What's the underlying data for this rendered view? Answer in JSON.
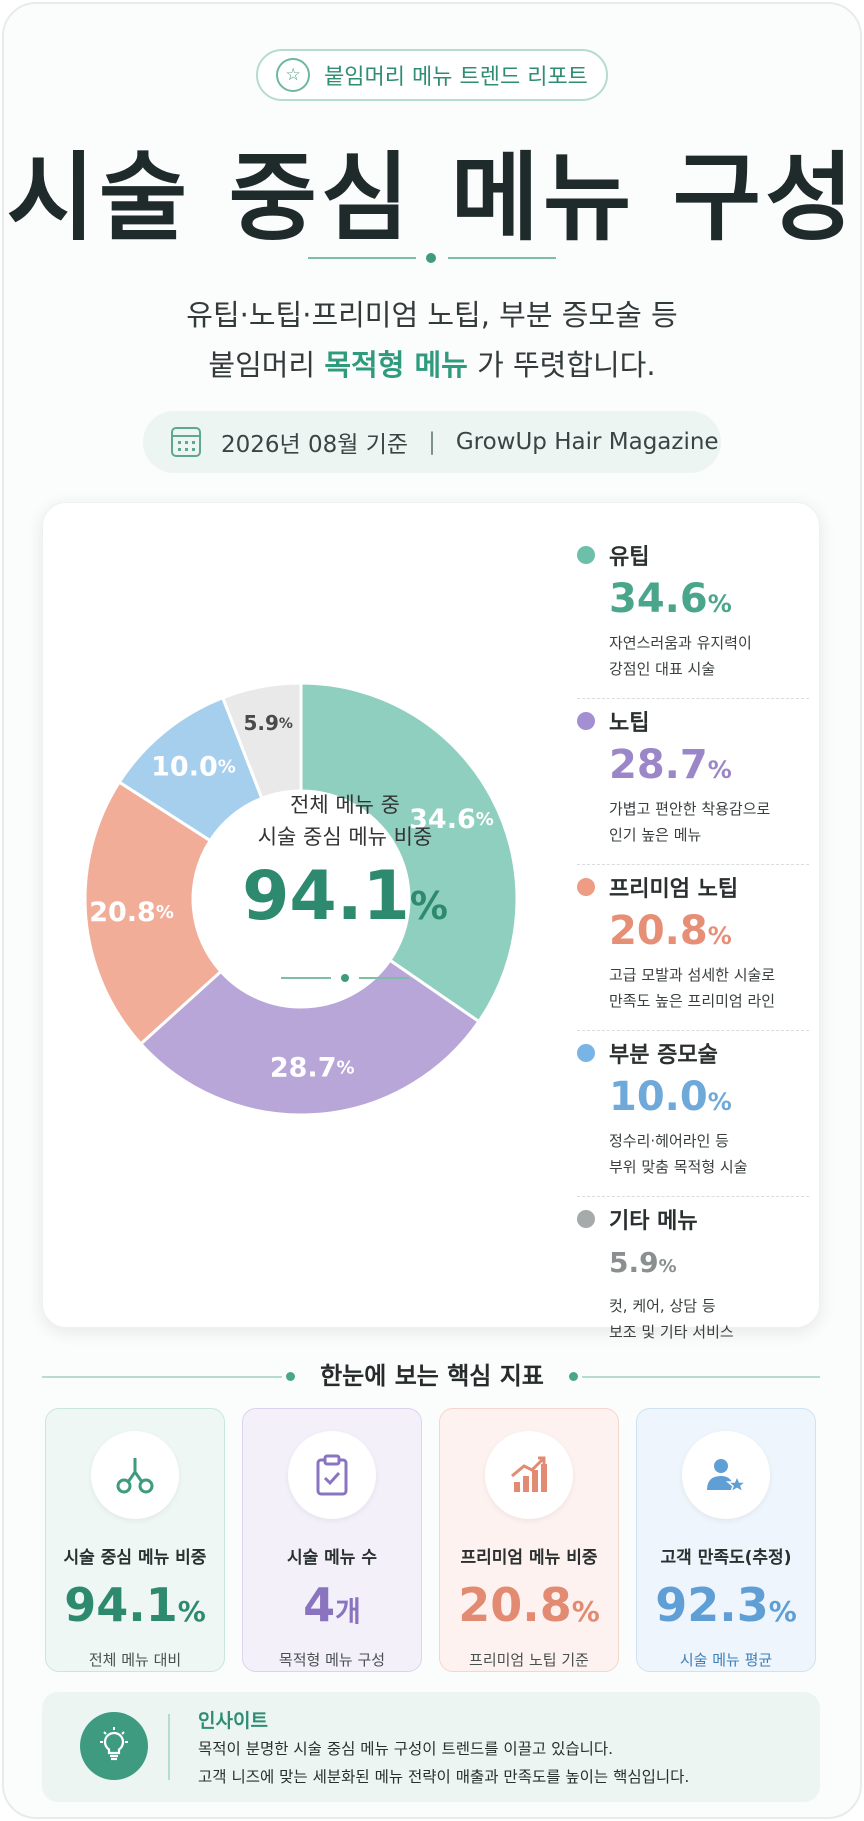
{
  "header": {
    "badge": "붙임머리 메뉴 트렌드 리포트",
    "title": "시술 중심 메뉴 구성",
    "subtitle_line1": "유팁·노팁·프리미엄 노팁, 부분 증모술 등",
    "subtitle_line2_pre": "붙임머리 ",
    "subtitle_line2_highlight": "목적형 메뉴",
    "subtitle_line2_post": "가 뚜렷합니다.",
    "date": "2026년 08월 기준",
    "source": "GrowUp Hair Magazine"
  },
  "center": {
    "label_line1": "전체 메뉴 중",
    "label_line2": "시술 중심 메뉴 비중",
    "value": "94.1",
    "unit": "%"
  },
  "chart_data": {
    "type": "pie",
    "categories": [
      "유팁",
      "노팁",
      "프리미엄 노팁",
      "부분 증모술",
      "기타 메뉴"
    ],
    "values": [
      34.6,
      28.7,
      20.8,
      10.0,
      5.9
    ],
    "slice_labels": [
      "34.6",
      "28.7",
      "20.8",
      "10.0",
      "5.9"
    ],
    "colors": [
      "#8fcfbf",
      "#b8a6d9",
      "#f1ad98",
      "#a6cfee",
      "#e9e9e9"
    ],
    "label_colors": [
      "#ffffff",
      "#ffffff",
      "#ffffff",
      "#ffffff",
      "#4a4a4a"
    ],
    "value_colors": [
      "#4aa68b",
      "#9b86c7",
      "#e68f76",
      "#6fa9da",
      "#8a8f8f"
    ],
    "dot_colors": [
      "#6cbfa9",
      "#a58fd3",
      "#ef9c84",
      "#78b4e6",
      "#a7aaaa"
    ],
    "descriptions": [
      [
        "자연스러움과 유지력이",
        "강점인 대표 시술"
      ],
      [
        "가볍고 편안한 착용감으로",
        "인기 높은 메뉴"
      ],
      [
        "고급 모발과 섬세한 시술로",
        "만족도 높은 프리미엄 라인"
      ],
      [
        "정수리·헤어라인 등",
        "부위 맞춤 목적형 시술"
      ],
      [
        "컷, 케어, 상담 등",
        "보조 및 기타 서비스"
      ]
    ],
    "unit": "%"
  },
  "metrics": {
    "section_title": "한눈에 보는 핵심 지표",
    "items": [
      {
        "label": "시술 중심 메뉴 비중",
        "value": "94.1",
        "unit": "%",
        "sub": "전체 메뉴 대비",
        "icon": "scissors-icon",
        "color": "#2e8a6e",
        "bg": "#eef7f3",
        "border": "#c9e6dc",
        "sub_color": "#4a5050"
      },
      {
        "label": "시술 메뉴 수",
        "value": "4",
        "unit": "개",
        "sub": "목적형 메뉴 구성",
        "icon": "clipboard-check-icon",
        "color": "#8b74bf",
        "bg": "#f3f0fa",
        "border": "#ddd3ef",
        "sub_color": "#4a5050"
      },
      {
        "label": "프리미엄 메뉴 비중",
        "value": "20.8",
        "unit": "%",
        "sub": "프리미엄 노팁 기준",
        "icon": "growth-chart-icon",
        "color": "#e28a72",
        "bg": "#fdf2ef",
        "border": "#f5d6cc",
        "sub_color": "#4a5050"
      },
      {
        "label": "고객 만족도(추정)",
        "value": "92.3",
        "unit": "%",
        "sub": "시술 메뉴 평균",
        "icon": "user-star-icon",
        "color": "#5f9fd6",
        "bg": "#eef5fc",
        "border": "#cfe2f3",
        "sub_color": "#3f7fb8"
      }
    ]
  },
  "insight": {
    "title": "인사이트",
    "line1": "목적이 분명한 시술 중심 메뉴 구성이 트렌드를 이끌고 있습니다.",
    "line2": "고객 니즈에 맞는 세분화된 메뉴 전략이 매출과 만족도를 높이는 핵심입니다."
  }
}
